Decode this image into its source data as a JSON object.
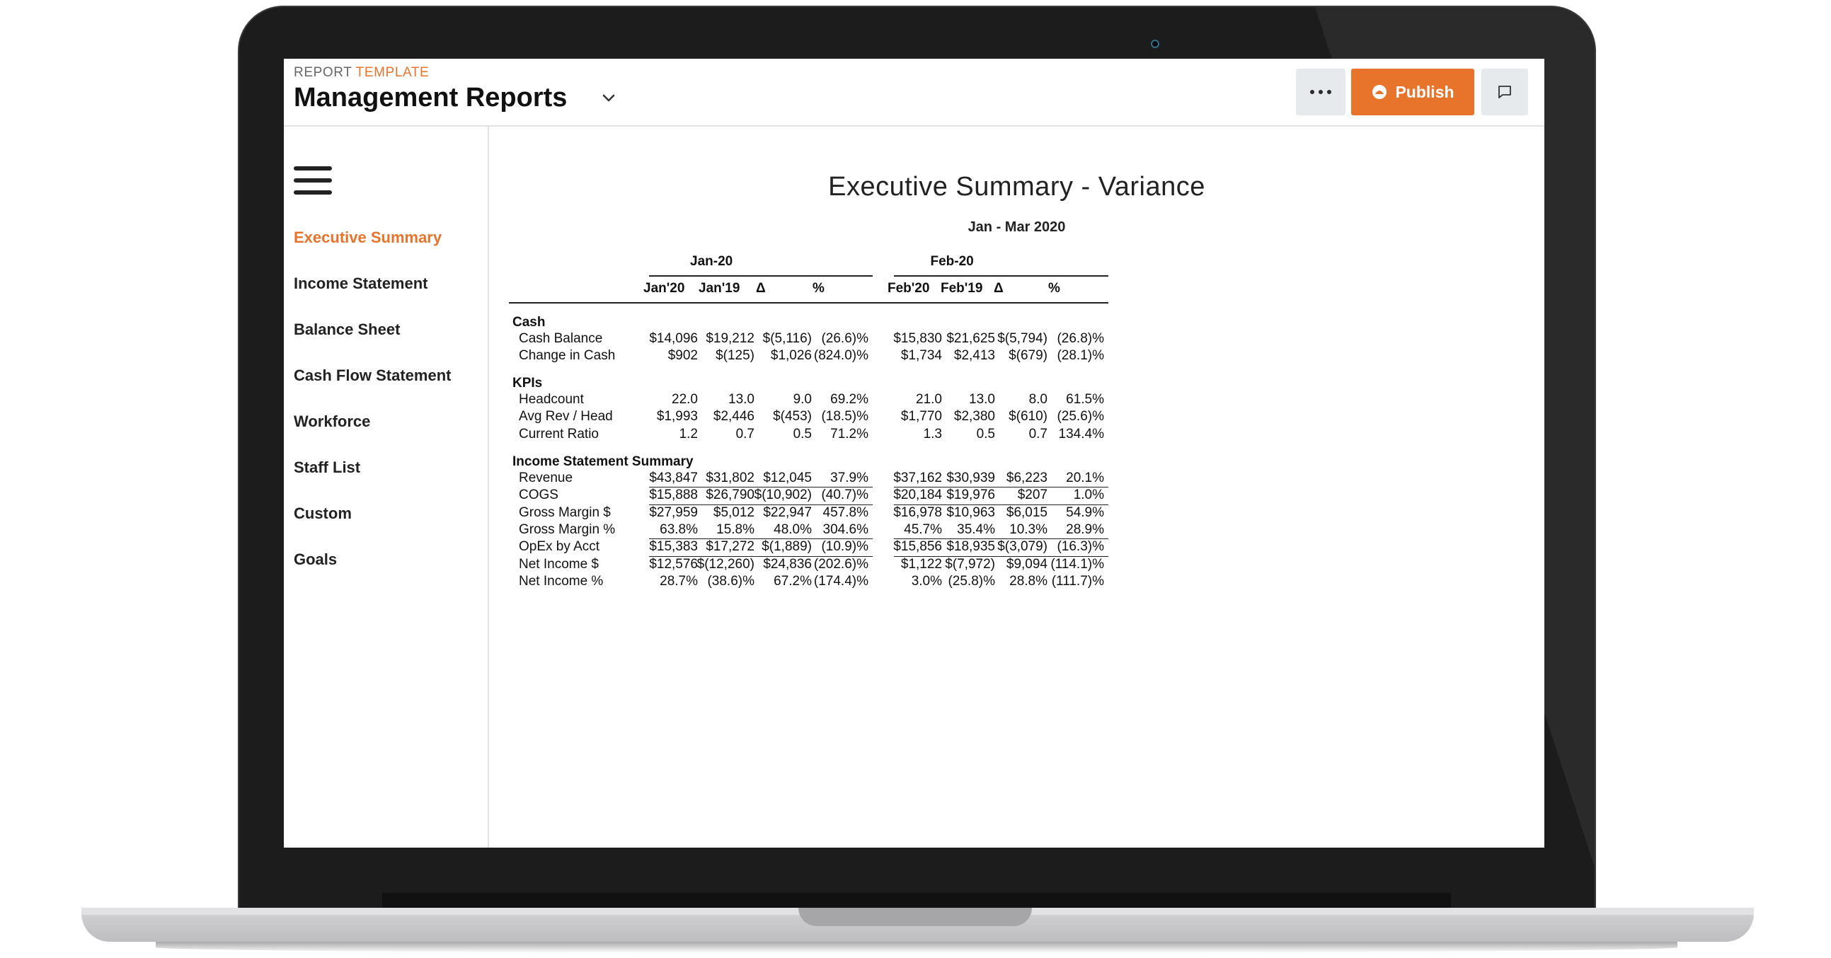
{
  "header": {
    "breadcrumb_prefix": "REPORT",
    "breadcrumb_accent": "TEMPLATE",
    "title": "Management Reports",
    "more_icon": "more-horizontal-icon",
    "publish_label": "Publish",
    "publish_icon": "publish-icon",
    "comment_icon": "comment-icon"
  },
  "sidebar": {
    "menu_icon": "hamburger-menu-icon",
    "items": [
      {
        "label": "Executive Summary",
        "active": true
      },
      {
        "label": "Income Statement",
        "active": false
      },
      {
        "label": "Balance Sheet",
        "active": false
      },
      {
        "label": "Cash Flow Statement",
        "active": false
      },
      {
        "label": "Workforce",
        "active": false
      },
      {
        "label": "Staff List",
        "active": false
      },
      {
        "label": "Custom",
        "active": false
      },
      {
        "label": "Goals",
        "active": false
      }
    ]
  },
  "report": {
    "title": "Executive Summary - Variance",
    "subtitle": "Jan - Mar 2020",
    "groups": [
      {
        "label": "Jan-20",
        "columns": [
          "Jan'20",
          "Jan'19",
          "Δ",
          "%"
        ]
      },
      {
        "label": "Feb-20",
        "columns": [
          "Feb'20",
          "Feb'19",
          "Δ",
          "%"
        ]
      }
    ],
    "sections": [
      {
        "label": "Cash",
        "rows": [
          {
            "label": "Cash Balance",
            "values": [
              "$14,096",
              "$19,212",
              "$(5,116)",
              "(26.6)%",
              "$15,830",
              "$21,625",
              "$(5,794)",
              "(26.8)%"
            ]
          },
          {
            "label": "Change in Cash",
            "values": [
              "$902",
              "$(125)",
              "$1,026",
              "(824.0)%",
              "$1,734",
              "$2,413",
              "$(679)",
              "(28.1)%"
            ]
          }
        ]
      },
      {
        "label": "KPIs",
        "rows": [
          {
            "label": "Headcount",
            "values": [
              "22.0",
              "13.0",
              "9.0",
              "69.2%",
              "21.0",
              "13.0",
              "8.0",
              "61.5%"
            ]
          },
          {
            "label": "Avg Rev / Head",
            "values": [
              "$1,993",
              "$2,446",
              "$(453)",
              "(18.5)%",
              "$1,770",
              "$2,380",
              "$(610)",
              "(25.6)%"
            ]
          },
          {
            "label": "Current Ratio",
            "values": [
              "1.2",
              "0.7",
              "0.5",
              "71.2%",
              "1.3",
              "0.5",
              "0.7",
              "134.4%"
            ]
          }
        ]
      },
      {
        "label": "Income Statement Summary",
        "rows": [
          {
            "label": "Revenue",
            "values": [
              "$43,847",
              "$31,802",
              "$12,045",
              "37.9%",
              "$37,162",
              "$30,939",
              "$6,223",
              "20.1%"
            ]
          },
          {
            "label": "COGS",
            "values": [
              "$15,888",
              "$26,790",
              "$(10,902)",
              "(40.7)%",
              "$20,184",
              "$19,976",
              "$207",
              "1.0%"
            ]
          },
          {
            "label": "Gross Margin $",
            "values": [
              "$27,959",
              "$5,012",
              "$22,947",
              "457.8%",
              "$16,978",
              "$10,963",
              "$6,015",
              "54.9%"
            ]
          },
          {
            "label": "Gross Margin %",
            "values": [
              "63.8%",
              "15.8%",
              "48.0%",
              "304.6%",
              "45.7%",
              "35.4%",
              "10.3%",
              "28.9%"
            ]
          },
          {
            "label": "OpEx by Acct",
            "values": [
              "$15,383",
              "$17,272",
              "$(1,889)",
              "(10.9)%",
              "$15,856",
              "$18,935",
              "$(3,079)",
              "(16.3)%"
            ]
          },
          {
            "label": "Net Income $",
            "values": [
              "$12,576",
              "$(12,260)",
              "$24,836",
              "(202.6)%",
              "$1,122",
              "$(7,972)",
              "$9,094",
              "(114.1)%"
            ]
          },
          {
            "label": "Net Income %",
            "values": [
              "28.7%",
              "(38.6)%",
              "67.2%",
              "(174.4)%",
              "3.0%",
              "(25.8)%",
              "28.8%",
              "(111.7)%"
            ]
          }
        ]
      }
    ]
  },
  "colors": {
    "accent": "#e8742c",
    "text": "#111111",
    "button_bg": "#e7eaed"
  }
}
